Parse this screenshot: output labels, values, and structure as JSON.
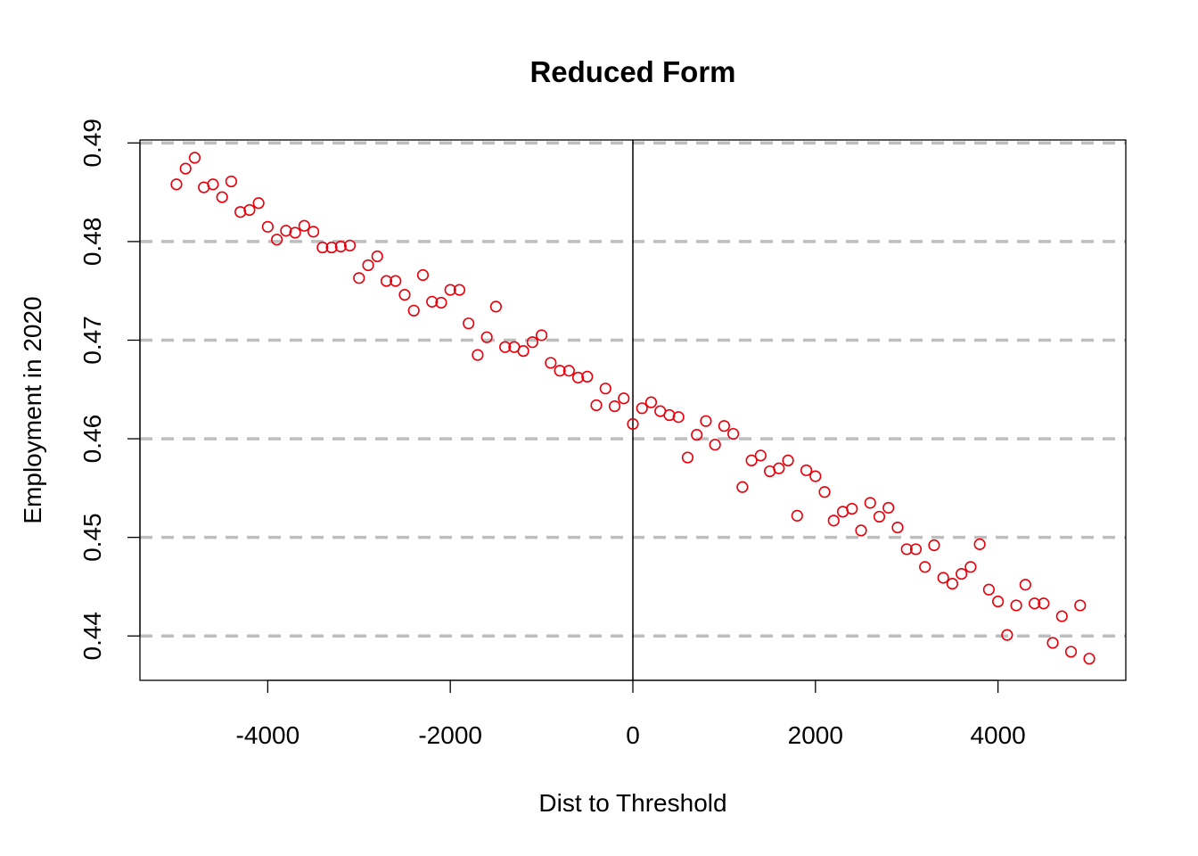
{
  "chart_data": {
    "type": "scatter",
    "title": "Reduced Form",
    "xlabel": "Dist to Threshold",
    "ylabel": "Employment in 2020",
    "xlim": [
      -5400,
      5400
    ],
    "ylim": [
      0.4355,
      0.4903
    ],
    "x_ticks": [
      -4000,
      -2000,
      0,
      2000,
      4000
    ],
    "x_tick_labels": [
      "-4000",
      "-2000",
      "0",
      "2000",
      "4000"
    ],
    "y_ticks": [
      0.44,
      0.45,
      0.46,
      0.47,
      0.48,
      0.49
    ],
    "y_tick_labels": [
      "0.44",
      "0.45",
      "0.46",
      "0.47",
      "0.48",
      "0.49"
    ],
    "grid": "horizontal dashed at y ticks",
    "vertical_line_x": 0,
    "colors": {
      "points": "#e8000b",
      "grid": "#bebebe",
      "axis": "#000000"
    },
    "series": [
      {
        "x": [
          -5000,
          -4900,
          -4800,
          -4700,
          -4600,
          -4500,
          -4400,
          -4300,
          -4200,
          -4100,
          -4000,
          -3900,
          -3800,
          -3700,
          -3600,
          -3500,
          -3400,
          -3300,
          -3200,
          -3100,
          -3000,
          -2900,
          -2800,
          -2700,
          -2600,
          -2500,
          -2400,
          -2300,
          -2200,
          -2100,
          -2000,
          -1900,
          -1800,
          -1700,
          -1600,
          -1500,
          -1400,
          -1300,
          -1200,
          -1100,
          -1000,
          -900,
          -800,
          -700,
          -600,
          -500,
          -400,
          -300,
          -200,
          -100,
          0,
          100,
          200,
          300,
          400,
          500,
          600,
          700,
          800,
          900,
          1000,
          1100,
          1200,
          1300,
          1400,
          1500,
          1600,
          1700,
          1800,
          1900,
          2000,
          2100,
          2200,
          2300,
          2400,
          2500,
          2600,
          2700,
          2800,
          2900,
          3000,
          3100,
          3200,
          3300,
          3400,
          3500,
          3600,
          3700,
          3800,
          3900,
          4000,
          4100,
          4200,
          4300,
          4400,
          4500,
          4600,
          4700,
          4800,
          4900,
          5000
        ],
        "y": [
          0.4858,
          0.4874,
          0.4885,
          0.4855,
          0.4858,
          0.4845,
          0.4861,
          0.483,
          0.4832,
          0.4839,
          0.4815,
          0.4802,
          0.4811,
          0.4809,
          0.4816,
          0.481,
          0.4794,
          0.4794,
          0.4795,
          0.4796,
          0.4763,
          0.4776,
          0.4785,
          0.476,
          0.476,
          0.4746,
          0.473,
          0.4766,
          0.4739,
          0.4738,
          0.4751,
          0.4751,
          0.4717,
          0.4685,
          0.4703,
          0.4734,
          0.4693,
          0.4693,
          0.4689,
          0.4698,
          0.4705,
          0.4677,
          0.4669,
          0.4669,
          0.4662,
          0.4663,
          0.4634,
          0.4651,
          0.4633,
          0.4641,
          0.4615,
          0.4631,
          0.4637,
          0.4628,
          0.4624,
          0.4622,
          0.4581,
          0.4604,
          0.4618,
          0.4594,
          0.4613,
          0.4605,
          0.4551,
          0.4578,
          0.4583,
          0.4567,
          0.457,
          0.4578,
          0.4522,
          0.4568,
          0.4562,
          0.4546,
          0.4517,
          0.4526,
          0.4529,
          0.4507,
          0.4535,
          0.4521,
          0.453,
          0.451,
          0.4488,
          0.4488,
          0.447,
          0.4492,
          0.4459,
          0.4453,
          0.4463,
          0.447,
          0.4493,
          0.4447,
          0.4435,
          0.4401,
          0.4431,
          0.4452,
          0.4433,
          0.4433,
          0.4393,
          0.442,
          0.4384,
          0.4431,
          0.4377
        ]
      }
    ]
  }
}
